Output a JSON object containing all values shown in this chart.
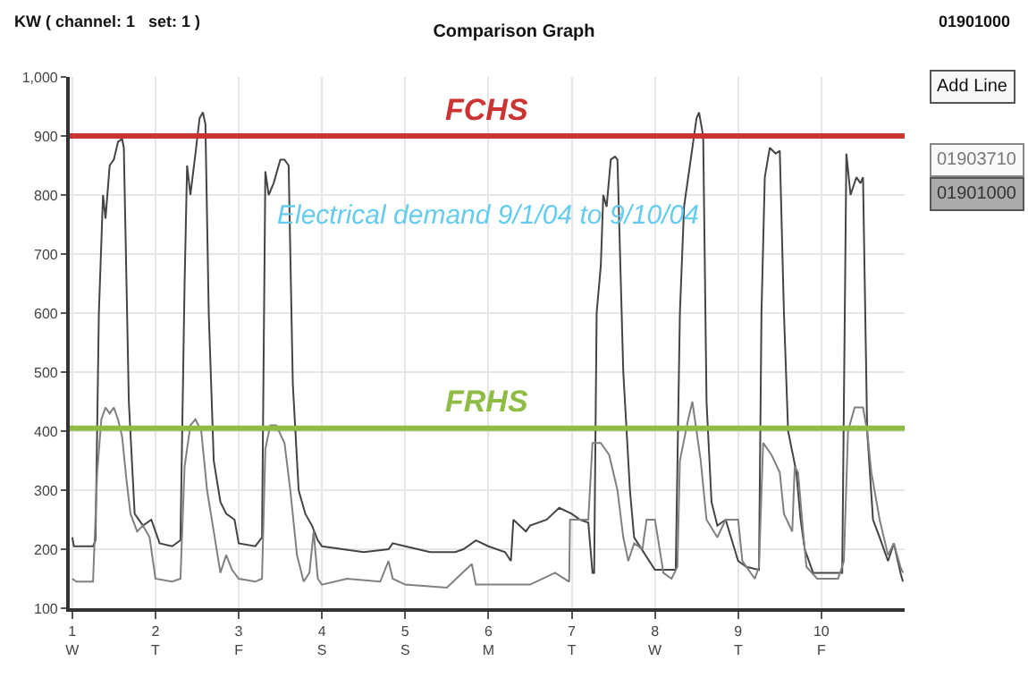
{
  "chart_data": {
    "type": "line",
    "title": "Comparison Graph",
    "ylabel": "KW ( channel: 1   set: 1 )",
    "annotations": [
      "Electrical demand 9/1/04 to 9/10/04",
      "01901000",
      "Add Line",
      "01903710",
      "01901000"
    ],
    "xlim": [
      0.97,
      11
    ],
    "xticks": [
      {
        "value": 1,
        "label": "1\nW"
      },
      {
        "value": 2,
        "label": "2\nT"
      },
      {
        "value": 3,
        "label": "3\nF"
      },
      {
        "value": 4,
        "label": "4\nS"
      },
      {
        "value": 5,
        "label": "5\nS"
      },
      {
        "value": 6,
        "label": "6\nM"
      },
      {
        "value": 7,
        "label": "7\nT"
      },
      {
        "value": 8,
        "label": "8\nW"
      },
      {
        "value": 9,
        "label": "9\nT"
      },
      {
        "value": 10,
        "label": "10\nF"
      }
    ],
    "ylim": [
      100,
      1000
    ],
    "yticks": [
      100,
      200,
      300,
      400,
      500,
      600,
      700,
      800,
      900,
      {
        "value": 1000,
        "label": "1,000"
      }
    ],
    "grid": true,
    "marker": "none",
    "line_style": "solid",
    "ref_lines": [
      {
        "axis": "y",
        "value": 900,
        "label": "FCHS",
        "color": "#cc3333"
      },
      {
        "axis": "y",
        "value": 405,
        "label": "FRHS",
        "color": "#8fbc45"
      }
    ],
    "series": [
      {
        "color": "#444444",
        "x": [
          1.0,
          1.02,
          1.25,
          1.28,
          1.32,
          1.37,
          1.4,
          1.45,
          1.5,
          1.55,
          1.6,
          1.62,
          1.68,
          1.75,
          1.85,
          1.95,
          2.0,
          2.05,
          2.2,
          2.3,
          2.35,
          2.38,
          2.42,
          2.48,
          2.53,
          2.57,
          2.6,
          2.64,
          2.7,
          2.78,
          2.85,
          2.95,
          3.0,
          3.2,
          3.28,
          3.32,
          3.36,
          3.42,
          3.5,
          3.55,
          3.6,
          3.65,
          3.72,
          3.8,
          3.88,
          3.95,
          4.0,
          4.5,
          4.8,
          4.85,
          5.0,
          5.3,
          5.6,
          5.7,
          5.85,
          6.0,
          6.2,
          6.27,
          6.3,
          6.45,
          6.5,
          6.7,
          6.85,
          7.0,
          7.1,
          7.2,
          7.25,
          7.27,
          7.3,
          7.35,
          7.38,
          7.42,
          7.47,
          7.52,
          7.55,
          7.62,
          7.7,
          7.75,
          8.0,
          8.25,
          8.3,
          8.35,
          8.42,
          8.5,
          8.53,
          8.58,
          8.62,
          8.68,
          8.75,
          8.85,
          9.0,
          9.1,
          9.25,
          9.28,
          9.32,
          9.38,
          9.45,
          9.5,
          9.55,
          9.6,
          9.7,
          9.75,
          9.8,
          9.9,
          10.0,
          10.25,
          10.3,
          10.35,
          10.42,
          10.47,
          10.5,
          10.55,
          10.62,
          10.7,
          10.8,
          10.87,
          10.95,
          10.98
        ],
        "values": [
          220,
          205,
          205,
          215,
          600,
          800,
          760,
          850,
          860,
          890,
          895,
          880,
          450,
          260,
          240,
          250,
          230,
          210,
          205,
          215,
          650,
          850,
          800,
          870,
          930,
          940,
          920,
          600,
          350,
          280,
          260,
          250,
          210,
          205,
          220,
          840,
          800,
          820,
          860,
          860,
          850,
          480,
          300,
          260,
          240,
          215,
          205,
          195,
          200,
          210,
          205,
          195,
          195,
          200,
          215,
          205,
          195,
          180,
          250,
          230,
          240,
          250,
          270,
          260,
          250,
          245,
          160,
          160,
          600,
          680,
          800,
          780,
          860,
          865,
          860,
          500,
          300,
          220,
          165,
          165,
          600,
          780,
          850,
          930,
          940,
          900,
          450,
          280,
          240,
          250,
          180,
          170,
          165,
          600,
          830,
          880,
          870,
          875,
          600,
          400,
          330,
          250,
          200,
          160,
          160,
          160,
          870,
          800,
          830,
          820,
          830,
          400,
          250,
          220,
          180,
          210,
          160,
          145
        ]
      },
      {
        "color": "#808080",
        "x": [
          1.0,
          1.05,
          1.25,
          1.3,
          1.35,
          1.4,
          1.45,
          1.5,
          1.55,
          1.6,
          1.65,
          1.7,
          1.78,
          1.85,
          1.93,
          2.0,
          2.2,
          2.3,
          2.35,
          2.42,
          2.48,
          2.55,
          2.62,
          2.7,
          2.78,
          2.85,
          2.92,
          3.0,
          3.2,
          3.28,
          3.32,
          3.38,
          3.45,
          3.55,
          3.62,
          3.7,
          3.78,
          3.85,
          3.9,
          3.95,
          4.0,
          4.3,
          4.7,
          4.8,
          4.85,
          5.0,
          5.5,
          5.8,
          5.85,
          6.0,
          6.5,
          6.8,
          6.97,
          6.98,
          7.2,
          7.25,
          7.35,
          7.45,
          7.55,
          7.62,
          7.68,
          7.75,
          7.85,
          7.9,
          8.0,
          8.08,
          8.1,
          8.2,
          8.27,
          8.3,
          8.4,
          8.45,
          8.5,
          8.55,
          8.62,
          8.75,
          8.85,
          9.0,
          9.05,
          9.2,
          9.25,
          9.3,
          9.4,
          9.5,
          9.55,
          9.65,
          9.68,
          9.72,
          9.78,
          9.82,
          9.95,
          10.0,
          10.2,
          10.27,
          10.32,
          10.4,
          10.5,
          10.55,
          10.6,
          10.7,
          10.8,
          10.87,
          10.95,
          10.98
        ],
        "values": [
          150,
          145,
          145,
          330,
          420,
          440,
          430,
          440,
          420,
          390,
          320,
          260,
          230,
          240,
          220,
          150,
          145,
          150,
          340,
          410,
          420,
          400,
          300,
          230,
          160,
          190,
          165,
          150,
          145,
          150,
          370,
          410,
          410,
          380,
          300,
          190,
          145,
          160,
          230,
          150,
          140,
          150,
          145,
          180,
          150,
          140,
          135,
          175,
          140,
          140,
          140,
          160,
          145,
          250,
          250,
          380,
          380,
          360,
          300,
          220,
          180,
          210,
          200,
          250,
          250,
          180,
          160,
          150,
          170,
          350,
          420,
          450,
          400,
          350,
          250,
          220,
          250,
          250,
          180,
          150,
          170,
          380,
          360,
          330,
          260,
          230,
          340,
          330,
          230,
          170,
          150,
          150,
          150,
          180,
          400,
          440,
          440,
          400,
          330,
          250,
          190,
          210,
          170,
          160
        ]
      }
    ]
  }
}
